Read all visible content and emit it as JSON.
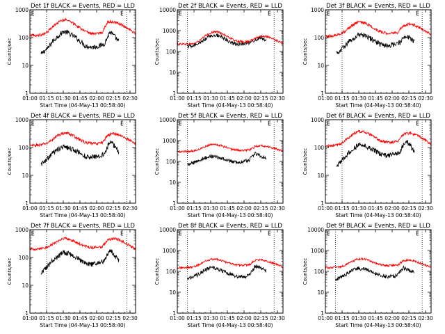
{
  "figure": {
    "xtitle": "Start Time (04-May-13 00:58:40)",
    "ytitle": "Counts/sec"
  },
  "colors": {
    "events": "#000000",
    "lld": "#ff0000",
    "axes": "#000000"
  },
  "chart_data": [
    {
      "type": "line",
      "title": "Det 1f BLACK = Events, RED = LLD",
      "ylog": true,
      "ylim": [
        1,
        1000
      ],
      "xlim": [
        "01:00",
        "02:35"
      ],
      "xticks": [
        "01:00",
        "01:15",
        "01:30",
        "01:45",
        "02:00",
        "02:15",
        "02:30"
      ],
      "yticks": [
        "1",
        "10",
        "100",
        "1000"
      ],
      "markers": [
        "01:15",
        "02:27"
      ],
      "series": [
        {
          "name": "Events",
          "color": "#000000",
          "x": [
            "01:10",
            "01:13",
            "01:16",
            "01:20",
            "01:25",
            "01:30",
            "01:34",
            "01:40",
            "01:45",
            "01:50",
            "01:55",
            "02:00",
            "02:03",
            "02:07",
            "02:12",
            "02:17",
            "02:20"
          ],
          "values": [
            25,
            33,
            40,
            70,
            110,
            165,
            150,
            110,
            75,
            50,
            45,
            48,
            50,
            60,
            160,
            100,
            70
          ]
        },
        {
          "name": "LLD",
          "color": "#ff0000",
          "x": [
            "01:00",
            "01:05",
            "01:10",
            "01:15",
            "01:20",
            "01:25",
            "01:30",
            "01:35",
            "01:40",
            "01:45",
            "01:50",
            "01:55",
            "02:00",
            "02:05",
            "02:10",
            "02:15",
            "02:20",
            "02:25",
            "02:30",
            "02:35"
          ],
          "values": [
            125,
            120,
            125,
            150,
            230,
            350,
            440,
            410,
            310,
            220,
            160,
            140,
            140,
            150,
            380,
            360,
            320,
            250,
            190,
            140
          ]
        }
      ]
    },
    {
      "type": "line",
      "title": "Det 2f BLACK = Events, RED = LLD",
      "ylog": true,
      "ylim": [
        1,
        10000
      ],
      "xlim": [
        "01:00",
        "02:35"
      ],
      "xticks": [
        "01:00",
        "01:15",
        "01:30",
        "01:45",
        "02:00",
        "02:15",
        "02:30"
      ],
      "yticks": [
        "1",
        "10",
        "100",
        "1000",
        "10000"
      ],
      "markers": [
        "01:09",
        "02:27"
      ],
      "series": [
        {
          "name": "Events",
          "color": "#000000",
          "x": [
            "01:09",
            "01:15",
            "01:20",
            "01:25",
            "01:30",
            "01:35",
            "01:40",
            "01:45",
            "01:50",
            "01:55",
            "02:00",
            "02:05",
            "02:10",
            "02:15",
            "02:20"
          ],
          "values": [
            180,
            190,
            250,
            400,
            580,
            620,
            500,
            350,
            250,
            230,
            240,
            270,
            380,
            450,
            330
          ]
        },
        {
          "name": "LLD",
          "color": "#ff0000",
          "x": [
            "01:00",
            "01:05",
            "01:10",
            "01:15",
            "01:20",
            "01:25",
            "01:30",
            "01:35",
            "01:40",
            "01:45",
            "01:50",
            "01:55",
            "02:00",
            "02:05",
            "02:10",
            "02:15",
            "02:20",
            "02:25",
            "02:30",
            "02:35"
          ],
          "values": [
            230,
            230,
            230,
            240,
            330,
            550,
            780,
            900,
            750,
            520,
            370,
            300,
            290,
            310,
            420,
            560,
            520,
            420,
            320,
            240
          ]
        }
      ]
    },
    {
      "type": "line",
      "title": "Det 3f BLACK = Events, RED = LLD",
      "ylog": true,
      "ylim": [
        1,
        1000
      ],
      "xlim": [
        "01:00",
        "02:35"
      ],
      "xticks": [
        "01:00",
        "01:15",
        "01:30",
        "01:45",
        "02:00",
        "02:15",
        "02:30"
      ],
      "yticks": [
        "1",
        "10",
        "100",
        "1000"
      ],
      "markers": [
        "01:15",
        "02:27"
      ],
      "series": [
        {
          "name": "Events",
          "color": "#000000",
          "x": [
            "01:10",
            "01:13",
            "01:16",
            "01:20",
            "01:25",
            "01:30",
            "01:34",
            "01:40",
            "01:45",
            "01:50",
            "01:55",
            "02:00",
            "02:03",
            "02:07",
            "02:12",
            "02:17",
            "02:20"
          ],
          "values": [
            28,
            35,
            42,
            65,
            95,
            125,
            120,
            95,
            72,
            55,
            50,
            55,
            58,
            65,
            115,
            90,
            70
          ]
        },
        {
          "name": "LLD",
          "color": "#ff0000",
          "x": [
            "01:00",
            "01:05",
            "01:10",
            "01:15",
            "01:20",
            "01:25",
            "01:30",
            "01:35",
            "01:40",
            "01:45",
            "01:50",
            "01:55",
            "02:00",
            "02:05",
            "02:10",
            "02:15",
            "02:20",
            "02:25",
            "02:30",
            "02:35"
          ],
          "values": [
            110,
            115,
            120,
            145,
            200,
            290,
            360,
            340,
            270,
            200,
            160,
            145,
            145,
            155,
            260,
            300,
            280,
            220,
            175,
            130
          ]
        }
      ]
    },
    {
      "type": "line",
      "title": "Det 4f BLACK = Events, RED = LLD",
      "ylog": true,
      "ylim": [
        1,
        1000
      ],
      "xlim": [
        "01:00",
        "02:35"
      ],
      "xticks": [
        "01:00",
        "01:15",
        "01:30",
        "01:45",
        "02:00",
        "02:15",
        "02:30"
      ],
      "yticks": [
        "1",
        "10",
        "100",
        "1000"
      ],
      "markers": [
        "01:15",
        "02:27"
      ],
      "series": [
        {
          "name": "Events",
          "color": "#000000",
          "x": [
            "01:10",
            "01:13",
            "01:16",
            "01:20",
            "01:25",
            "01:30",
            "01:34",
            "01:40",
            "01:45",
            "01:50",
            "01:55",
            "02:00",
            "02:03",
            "02:07",
            "02:12",
            "02:17",
            "02:20"
          ],
          "values": [
            25,
            32,
            40,
            60,
            85,
            105,
            100,
            80,
            62,
            48,
            45,
            48,
            52,
            60,
            170,
            100,
            70
          ]
        },
        {
          "name": "LLD",
          "color": "#ff0000",
          "x": [
            "01:00",
            "01:05",
            "01:10",
            "01:15",
            "01:20",
            "01:25",
            "01:30",
            "01:35",
            "01:40",
            "01:45",
            "01:50",
            "01:55",
            "02:00",
            "02:05",
            "02:10",
            "02:15",
            "02:20",
            "02:25",
            "02:30",
            "02:35"
          ],
          "values": [
            115,
            120,
            125,
            140,
            190,
            270,
            330,
            320,
            250,
            190,
            150,
            140,
            140,
            150,
            280,
            320,
            290,
            230,
            180,
            130
          ]
        }
      ]
    },
    {
      "type": "line",
      "title": "Det 5f BLACK = Events, RED = LLD",
      "ylog": true,
      "ylim": [
        1,
        10000
      ],
      "xlim": [
        "01:00",
        "02:35"
      ],
      "xticks": [
        "01:00",
        "01:15",
        "01:30",
        "01:45",
        "02:00",
        "02:15",
        "02:30"
      ],
      "yticks": [
        "1",
        "10",
        "100",
        "1000",
        "10000"
      ],
      "markers": [
        "01:09",
        "02:27"
      ],
      "series": [
        {
          "name": "Events",
          "color": "#000000",
          "x": [
            "01:09",
            "01:15",
            "01:20",
            "01:25",
            "01:30",
            "01:35",
            "01:40",
            "01:45",
            "01:50",
            "01:55",
            "02:00",
            "02:05",
            "02:10",
            "02:15",
            "02:20"
          ],
          "values": [
            70,
            85,
            120,
            150,
            180,
            170,
            140,
            115,
            100,
            95,
            100,
            120,
            260,
            180,
            140
          ]
        },
        {
          "name": "LLD",
          "color": "#ff0000",
          "x": [
            "01:00",
            "01:05",
            "01:10",
            "01:15",
            "01:20",
            "01:25",
            "01:30",
            "01:35",
            "01:40",
            "01:45",
            "01:50",
            "01:55",
            "02:00",
            "02:05",
            "02:10",
            "02:15",
            "02:20",
            "02:25",
            "02:30",
            "02:35"
          ],
          "values": [
            300,
            300,
            305,
            320,
            400,
            520,
            640,
            650,
            560,
            450,
            370,
            340,
            340,
            360,
            520,
            560,
            520,
            450,
            380,
            320
          ]
        }
      ]
    },
    {
      "type": "line",
      "title": "Det 6f BLACK = Events, RED = LLD",
      "ylog": true,
      "ylim": [
        1,
        1000
      ],
      "xlim": [
        "01:00",
        "02:35"
      ],
      "xticks": [
        "01:00",
        "01:15",
        "01:30",
        "01:45",
        "02:00",
        "02:15",
        "02:30"
      ],
      "yticks": [
        "1",
        "10",
        "100",
        "1000"
      ],
      "markers": [
        "01:15",
        "02:27"
      ],
      "series": [
        {
          "name": "Events",
          "color": "#000000",
          "x": [
            "01:10",
            "01:13",
            "01:16",
            "01:20",
            "01:25",
            "01:30",
            "01:34",
            "01:40",
            "01:45",
            "01:50",
            "01:55",
            "02:00",
            "02:03",
            "02:07",
            "02:12",
            "02:17",
            "02:20"
          ],
          "values": [
            20,
            28,
            38,
            60,
            90,
            125,
            120,
            95,
            75,
            55,
            50,
            55,
            60,
            70,
            180,
            110,
            70
          ]
        },
        {
          "name": "LLD",
          "color": "#ff0000",
          "x": [
            "01:00",
            "01:05",
            "01:10",
            "01:15",
            "01:20",
            "01:25",
            "01:30",
            "01:35",
            "01:40",
            "01:45",
            "01:50",
            "01:55",
            "02:00",
            "02:05",
            "02:10",
            "02:15",
            "02:20",
            "02:25",
            "02:30",
            "02:35"
          ],
          "values": [
            110,
            115,
            120,
            145,
            210,
            310,
            380,
            360,
            290,
            220,
            170,
            155,
            155,
            170,
            300,
            330,
            300,
            240,
            180,
            130
          ]
        }
      ]
    },
    {
      "type": "line",
      "title": "Det 7f BLACK = Events, RED = LLD",
      "ylog": true,
      "ylim": [
        1,
        1000
      ],
      "xlim": [
        "01:00",
        "02:35"
      ],
      "xticks": [
        "01:00",
        "01:15",
        "01:30",
        "01:45",
        "02:00",
        "02:15",
        "02:30"
      ],
      "yticks": [
        "1",
        "10",
        "100",
        "1000"
      ],
      "markers": [
        "01:15",
        "02:27"
      ],
      "series": [
        {
          "name": "Events",
          "color": "#000000",
          "x": [
            "01:10",
            "01:13",
            "01:16",
            "01:20",
            "01:25",
            "01:30",
            "01:34",
            "01:40",
            "01:45",
            "01:50",
            "01:55",
            "02:00",
            "02:03",
            "02:07",
            "02:12",
            "02:17",
            "02:20"
          ],
          "values": [
            25,
            38,
            50,
            75,
            105,
            150,
            140,
            110,
            80,
            60,
            55,
            60,
            65,
            75,
            190,
            110,
            75
          ]
        },
        {
          "name": "LLD",
          "color": "#ff0000",
          "x": [
            "01:00",
            "01:05",
            "01:10",
            "01:15",
            "01:20",
            "01:25",
            "01:30",
            "01:35",
            "01:40",
            "01:45",
            "01:50",
            "01:55",
            "02:00",
            "02:05",
            "02:10",
            "02:15",
            "02:20",
            "02:25",
            "02:30",
            "02:35"
          ],
          "values": [
            200,
            200,
            210,
            230,
            290,
            380,
            480,
            460,
            380,
            300,
            250,
            230,
            230,
            250,
            420,
            480,
            430,
            340,
            260,
            200
          ]
        }
      ]
    },
    {
      "type": "line",
      "title": "Det 8f BLACK = Events, RED = LLD",
      "ylog": true,
      "ylim": [
        1,
        10000
      ],
      "xlim": [
        "01:00",
        "02:35"
      ],
      "xticks": [
        "01:00",
        "01:15",
        "01:30",
        "01:45",
        "02:00",
        "02:15",
        "02:30"
      ],
      "yticks": [
        "1",
        "10",
        "100",
        "1000",
        "10000"
      ],
      "markers": [
        "01:09",
        "02:27"
      ],
      "series": [
        {
          "name": "Events",
          "color": "#000000",
          "x": [
            "01:09",
            "01:15",
            "01:20",
            "01:25",
            "01:30",
            "01:35",
            "01:40",
            "01:45",
            "01:50",
            "01:55",
            "02:00",
            "02:05",
            "02:10",
            "02:15",
            "02:20"
          ],
          "values": [
            45,
            55,
            80,
            120,
            150,
            140,
            110,
            85,
            65,
            55,
            55,
            65,
            180,
            150,
            100
          ]
        },
        {
          "name": "LLD",
          "color": "#ff0000",
          "x": [
            "01:00",
            "01:05",
            "01:10",
            "01:15",
            "01:20",
            "01:25",
            "01:30",
            "01:35",
            "01:40",
            "01:45",
            "01:50",
            "01:55",
            "02:00",
            "02:05",
            "02:10",
            "02:15",
            "02:20",
            "02:25",
            "02:30",
            "02:35"
          ],
          "values": [
            150,
            150,
            155,
            165,
            220,
            310,
            380,
            380,
            320,
            260,
            220,
            200,
            200,
            210,
            340,
            370,
            320,
            260,
            210,
            160
          ]
        }
      ]
    },
    {
      "type": "line",
      "title": "Det 9f BLACK = Events, RED = LLD",
      "ylog": true,
      "ylim": [
        1,
        10000
      ],
      "xlim": [
        "01:00",
        "02:35"
      ],
      "xticks": [
        "01:00",
        "01:15",
        "01:30",
        "01:45",
        "02:00",
        "02:15",
        "02:30"
      ],
      "yticks": [
        "1",
        "10",
        "100",
        "1000",
        "10000"
      ],
      "markers": [
        "01:09",
        "02:27"
      ],
      "series": [
        {
          "name": "Events",
          "color": "#000000",
          "x": [
            "01:09",
            "01:15",
            "01:20",
            "01:25",
            "01:30",
            "01:35",
            "01:40",
            "01:45",
            "01:50",
            "01:55",
            "02:00",
            "02:05",
            "02:10",
            "02:15",
            "02:20"
          ],
          "values": [
            40,
            55,
            80,
            115,
            140,
            130,
            105,
            80,
            65,
            55,
            55,
            65,
            150,
            120,
            85
          ]
        },
        {
          "name": "LLD",
          "color": "#ff0000",
          "x": [
            "01:00",
            "01:05",
            "01:10",
            "01:15",
            "01:20",
            "01:25",
            "01:30",
            "01:35",
            "01:40",
            "01:45",
            "01:50",
            "01:55",
            "02:00",
            "02:05",
            "02:10",
            "02:15",
            "02:20",
            "02:25",
            "02:30",
            "02:35"
          ],
          "values": [
            150,
            150,
            155,
            170,
            230,
            320,
            400,
            390,
            320,
            250,
            210,
            190,
            190,
            200,
            320,
            350,
            310,
            250,
            200,
            150
          ]
        }
      ]
    }
  ]
}
